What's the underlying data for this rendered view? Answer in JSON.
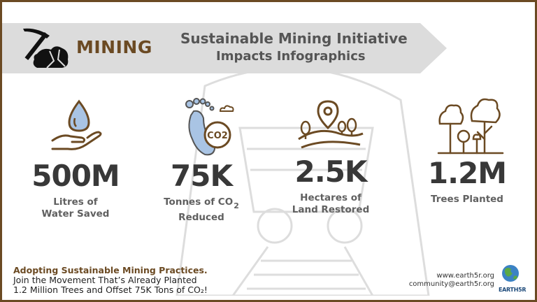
{
  "header": {
    "category": "MINING",
    "title_line1": "Sustainable Mining Initiative",
    "title_line2": "Impacts Infographics",
    "colors": {
      "brown": "#6b4a23",
      "banner_gray": "#dcdcdc",
      "text_gray": "#555555"
    }
  },
  "stats": [
    {
      "value": "500M",
      "label_line1": "Litres of",
      "label_line2": "Water Saved",
      "icon": "water-drop-hand-icon"
    },
    {
      "value": "75K",
      "label_line1": "Tonnes of CO",
      "label_sub": "2",
      "label_line2": "Reduced",
      "icon": "footprint-co2-icon"
    },
    {
      "value": "2.5K",
      "label_line1": "Hectares of",
      "label_line2": "Land Restored",
      "icon": "land-pin-icon"
    },
    {
      "value": "1.2M",
      "label_line1": "Trees Planted",
      "icon": "trees-icon"
    }
  ],
  "footer": {
    "headline": "Adopting Sustainable Mining Practices.",
    "line2": "Join the Movement That’s Already Planted",
    "line3": "1.2 Million Trees and Offset 75K Tons of CO₂!",
    "website": "www.earth5r.org",
    "email": "community@earth5r.org",
    "logo_text": "EARTH5R"
  }
}
